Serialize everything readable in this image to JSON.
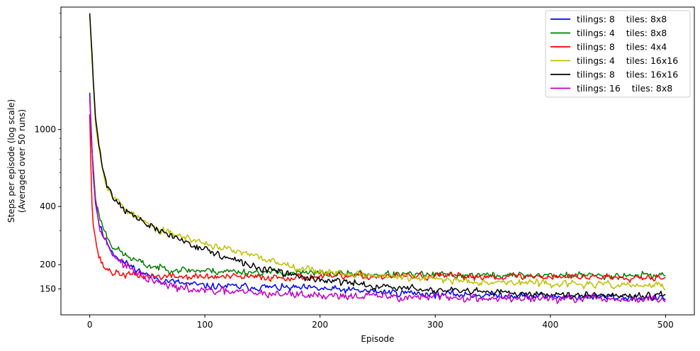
{
  "chart_data": {
    "type": "line",
    "xlabel": "Episode",
    "ylabel": [
      "Steps per episode (log scale)",
      "(Averaged over 50 runs)"
    ],
    "xlim": [
      -25,
      525
    ],
    "ylim": [
      110,
      4300
    ],
    "yscale": "log",
    "xticks": [
      0,
      100,
      200,
      300,
      400,
      500
    ],
    "yticks": [
      150,
      200,
      400,
      1000
    ],
    "legend_position": "top-right",
    "grid": false,
    "series": [
      {
        "name": "tilings: 8    tiles: 8x8",
        "color": "#0000ff",
        "anchors": [
          [
            0,
            1550
          ],
          [
            1,
            1100
          ],
          [
            3,
            600
          ],
          [
            5,
            420
          ],
          [
            8,
            330
          ],
          [
            12,
            280
          ],
          [
            15,
            260
          ],
          [
            20,
            232
          ],
          [
            30,
            205
          ],
          [
            40,
            190
          ],
          [
            50,
            177
          ],
          [
            60,
            168
          ],
          [
            80,
            160
          ],
          [
            100,
            155
          ],
          [
            150,
            153
          ],
          [
            200,
            150
          ],
          [
            250,
            145
          ],
          [
            300,
            141
          ],
          [
            350,
            139
          ],
          [
            400,
            137
          ],
          [
            450,
            136
          ],
          [
            500,
            134
          ]
        ],
        "noise": 0.03,
        "seed": 11
      },
      {
        "name": "tilings: 4    tiles: 8x8",
        "color": "#008000",
        "anchors": [
          [
            0,
            1150
          ],
          [
            1,
            950
          ],
          [
            3,
            650
          ],
          [
            5,
            450
          ],
          [
            8,
            360
          ],
          [
            12,
            310
          ],
          [
            15,
            280
          ],
          [
            20,
            250
          ],
          [
            30,
            225
          ],
          [
            40,
            210
          ],
          [
            50,
            198
          ],
          [
            60,
            193
          ],
          [
            80,
            188
          ],
          [
            100,
            186
          ],
          [
            150,
            183
          ],
          [
            200,
            180
          ],
          [
            250,
            178
          ],
          [
            300,
            177
          ],
          [
            350,
            176
          ],
          [
            400,
            176
          ],
          [
            450,
            176
          ],
          [
            500,
            177
          ]
        ],
        "noise": 0.03,
        "seed": 23
      },
      {
        "name": "tilings: 8    tiles: 4x4",
        "color": "#ff0000",
        "anchors": [
          [
            0,
            1200
          ],
          [
            1,
            650
          ],
          [
            2,
            420
          ],
          [
            3,
            330
          ],
          [
            5,
            270
          ],
          [
            8,
            220
          ],
          [
            12,
            195
          ],
          [
            20,
            182
          ],
          [
            30,
            178
          ],
          [
            50,
            174
          ],
          [
            100,
            173
          ],
          [
            150,
            172
          ],
          [
            200,
            173
          ],
          [
            250,
            174
          ],
          [
            300,
            174
          ],
          [
            350,
            174
          ],
          [
            400,
            174
          ],
          [
            450,
            173
          ],
          [
            500,
            173
          ]
        ],
        "noise": 0.03,
        "seed": 37
      },
      {
        "name": "tilings: 4    tiles: 16x16",
        "color": "#bfbf00",
        "anchors": [
          [
            0,
            3900
          ],
          [
            1,
            3000
          ],
          [
            3,
            1800
          ],
          [
            5,
            1100
          ],
          [
            8,
            800
          ],
          [
            12,
            600
          ],
          [
            15,
            520
          ],
          [
            20,
            450
          ],
          [
            30,
            395
          ],
          [
            40,
            355
          ],
          [
            50,
            325
          ],
          [
            60,
            300
          ],
          [
            80,
            280
          ],
          [
            100,
            258
          ],
          [
            120,
            240
          ],
          [
            150,
            215
          ],
          [
            180,
            195
          ],
          [
            200,
            185
          ],
          [
            250,
            175
          ],
          [
            300,
            168
          ],
          [
            350,
            163
          ],
          [
            400,
            160
          ],
          [
            450,
            157
          ],
          [
            500,
            155
          ]
        ],
        "noise": 0.03,
        "seed": 53
      },
      {
        "name": "tilings: 8    tiles: 16x16",
        "color": "#000000",
        "anchors": [
          [
            0,
            4000
          ],
          [
            1,
            3100
          ],
          [
            3,
            1850
          ],
          [
            5,
            1150
          ],
          [
            8,
            820
          ],
          [
            12,
            610
          ],
          [
            15,
            520
          ],
          [
            20,
            450
          ],
          [
            30,
            390
          ],
          [
            40,
            350
          ],
          [
            50,
            322
          ],
          [
            60,
            300
          ],
          [
            80,
            268
          ],
          [
            100,
            240
          ],
          [
            120,
            215
          ],
          [
            150,
            190
          ],
          [
            180,
            175
          ],
          [
            200,
            167
          ],
          [
            250,
            155
          ],
          [
            300,
            147
          ],
          [
            350,
            143
          ],
          [
            400,
            141
          ],
          [
            450,
            140
          ],
          [
            500,
            139
          ]
        ],
        "noise": 0.03,
        "seed": 71
      },
      {
        "name": "tilings: 16    tiles: 8x8",
        "color": "#bf00bf",
        "anchors": [
          [
            0,
            1450
          ],
          [
            1,
            1050
          ],
          [
            3,
            620
          ],
          [
            5,
            430
          ],
          [
            8,
            340
          ],
          [
            12,
            280
          ],
          [
            15,
            255
          ],
          [
            20,
            228
          ],
          [
            30,
            198
          ],
          [
            40,
            182
          ],
          [
            50,
            168
          ],
          [
            60,
            160
          ],
          [
            80,
            150
          ],
          [
            100,
            146
          ],
          [
            150,
            142
          ],
          [
            200,
            139
          ],
          [
            250,
            137
          ],
          [
            300,
            135
          ],
          [
            350,
            134
          ],
          [
            400,
            133
          ],
          [
            450,
            132
          ],
          [
            500,
            132
          ]
        ],
        "noise": 0.035,
        "seed": 97
      }
    ]
  }
}
